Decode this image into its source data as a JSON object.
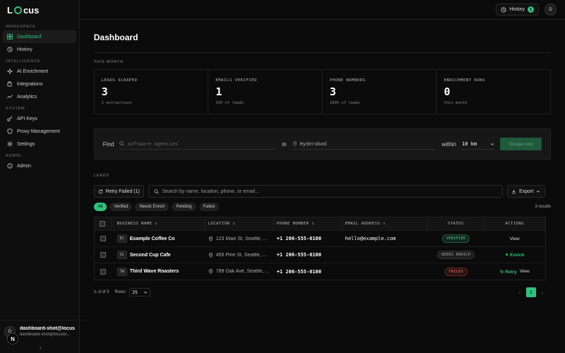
{
  "app": {
    "name_prefix": "L",
    "name_suffix": "cus"
  },
  "sidebar": {
    "sections": [
      {
        "label": "WORKSPACE"
      },
      {
        "label": "INTELLIGENCE"
      },
      {
        "label": "SYSTEM"
      },
      {
        "label": "ADMIN"
      }
    ],
    "items": [
      {
        "label": "Dashboard"
      },
      {
        "label": "History"
      },
      {
        "label": "AI Enrichment"
      },
      {
        "label": "Integrations"
      },
      {
        "label": "Analytics"
      },
      {
        "label": "API Keys"
      },
      {
        "label": "Proxy Management"
      },
      {
        "label": "Settings"
      },
      {
        "label": "Admin"
      }
    ],
    "user": {
      "initial": "D",
      "name": "dashboard-shot@locus...",
      "email": "dashboard-shot@locuslo..."
    },
    "n_badge": "N",
    "collapse_glyph": "‹"
  },
  "topbar": {
    "history_label": "History",
    "history_count": "1",
    "avatar_initial": "D"
  },
  "page": {
    "title": "Dashboard",
    "this_month_label": "THIS MONTH"
  },
  "stats": [
    {
      "label": "LEADS SCRAPED",
      "value": "3",
      "sub": "1 extractions"
    },
    {
      "label": "EMAILS VERIFIED",
      "value": "1",
      "sub": "33% of leads"
    },
    {
      "label": "PHONE NUMBERS",
      "value": "3",
      "sub": "100% of leads"
    },
    {
      "label": "ENRICHMENT RUNS",
      "value": "0",
      "sub": "this month"
    }
  ],
  "search": {
    "find_label": "Find",
    "query_placeholder": "software agencies",
    "in_label": "in",
    "location_placeholder": "Hyderabad",
    "within_label": "within",
    "radius_value": "10 km",
    "scrape_button": "Scrape now"
  },
  "leads": {
    "section_label": "LEADS",
    "retry_label": "Retry Failed (1)",
    "search_placeholder": "Search by name, location, phone, or email...",
    "export_label": "Export",
    "filters": [
      "All",
      "Verified",
      "Needs Enrich",
      "Pending",
      "Failed"
    ],
    "results_count": "3 results",
    "columns": {
      "business": "BUSINESS NAME",
      "location": "LOCATION",
      "phone": "PHONE NUMBER",
      "email": "EMAIL ADDRESS",
      "status": "STATUS",
      "actions": "ACTIONS"
    },
    "rows": [
      {
        "initials": "EC",
        "name": "Example Coffee Co",
        "location": "123 Main St, Seattle, ...",
        "phone": "+1 206-555-0100",
        "email": "hello@example.com",
        "status": "VERIFIED",
        "action_primary": "",
        "action_secondary": "View"
      },
      {
        "initials": "SC",
        "name": "Second Cup Cafe",
        "location": "456 Pine St, Seattle, ...",
        "phone": "+1 206-555-0100",
        "email": "",
        "status": "NEEDS ENRICH",
        "action_primary": "Enrich",
        "action_secondary": ""
      },
      {
        "initials": "TW",
        "name": "Third Wave Roasters",
        "location": "789 Oak Ave, Seattle, ...",
        "phone": "+1 206-555-0100",
        "email": "",
        "status": "FAILED",
        "action_primary": "Retry",
        "action_secondary": "View"
      }
    ],
    "pagination": {
      "range": "1–3 of 3",
      "rows_label": "Rows:",
      "rows_value": "25",
      "current_page": "1"
    }
  },
  "colors": {
    "accent": "#2ec27e",
    "background": "#0b0b0b",
    "failed": "#ff7b6b"
  }
}
